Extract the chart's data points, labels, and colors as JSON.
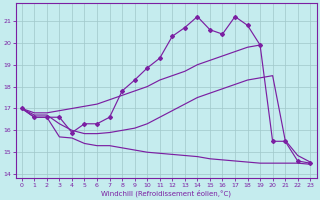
{
  "bg_color": "#c5ecee",
  "line_color": "#7b1fa2",
  "grid_color": "#a0c8ca",
  "xlabel": "Windchill (Refroidissement éolien,°C)",
  "xlim": [
    -0.5,
    23.5
  ],
  "ylim": [
    13.8,
    21.8
  ],
  "yticks": [
    14,
    15,
    16,
    17,
    18,
    19,
    20,
    21
  ],
  "xticks": [
    0,
    1,
    2,
    3,
    4,
    5,
    6,
    7,
    8,
    9,
    10,
    11,
    12,
    13,
    14,
    15,
    16,
    17,
    18,
    19,
    20,
    21,
    22,
    23
  ],
  "curve_zigzag_x": [
    0,
    1,
    2,
    3,
    4,
    5,
    6,
    7,
    8,
    9,
    10,
    11,
    12,
    13,
    14,
    15,
    16,
    17,
    18,
    19,
    20,
    21,
    22,
    23
  ],
  "curve_zigzag_y": [
    17.0,
    16.6,
    16.6,
    16.6,
    15.9,
    16.3,
    16.3,
    16.6,
    17.8,
    18.3,
    18.85,
    19.3,
    20.3,
    20.7,
    21.2,
    20.6,
    20.4,
    21.2,
    20.8,
    19.9,
    15.5,
    15.5,
    14.6,
    14.5
  ],
  "curve_upper_x": [
    0,
    1,
    2,
    3,
    4,
    5,
    6,
    7,
    8,
    9,
    10,
    11,
    12,
    13,
    14,
    15,
    16,
    17,
    18,
    19
  ],
  "curve_upper_y": [
    17.0,
    16.8,
    16.8,
    16.9,
    17.0,
    17.1,
    17.2,
    17.4,
    17.6,
    17.8,
    18.0,
    18.3,
    18.5,
    18.7,
    19.0,
    19.2,
    19.4,
    19.6,
    19.8,
    19.9
  ],
  "curve_mid_x": [
    0,
    1,
    2,
    3,
    4,
    5,
    6,
    7,
    8,
    9,
    10,
    11,
    12,
    13,
    14,
    15,
    16,
    17,
    18,
    19,
    20,
    21,
    22,
    23
  ],
  "curve_mid_y": [
    17.0,
    16.7,
    16.7,
    16.3,
    16.0,
    15.85,
    15.85,
    15.9,
    16.0,
    16.1,
    16.3,
    16.6,
    16.9,
    17.2,
    17.5,
    17.7,
    17.9,
    18.1,
    18.3,
    18.4,
    18.5,
    15.55,
    14.85,
    14.55
  ],
  "curve_lower_x": [
    0,
    1,
    2,
    3,
    4,
    5,
    6,
    7,
    8,
    9,
    10,
    11,
    12,
    13,
    14,
    15,
    16,
    17,
    18,
    19,
    20,
    21,
    22,
    23
  ],
  "curve_lower_y": [
    17.0,
    16.6,
    16.6,
    15.7,
    15.65,
    15.4,
    15.3,
    15.3,
    15.2,
    15.1,
    15.0,
    14.95,
    14.9,
    14.85,
    14.8,
    14.7,
    14.65,
    14.6,
    14.55,
    14.5,
    14.5,
    14.5,
    14.5,
    14.45
  ]
}
